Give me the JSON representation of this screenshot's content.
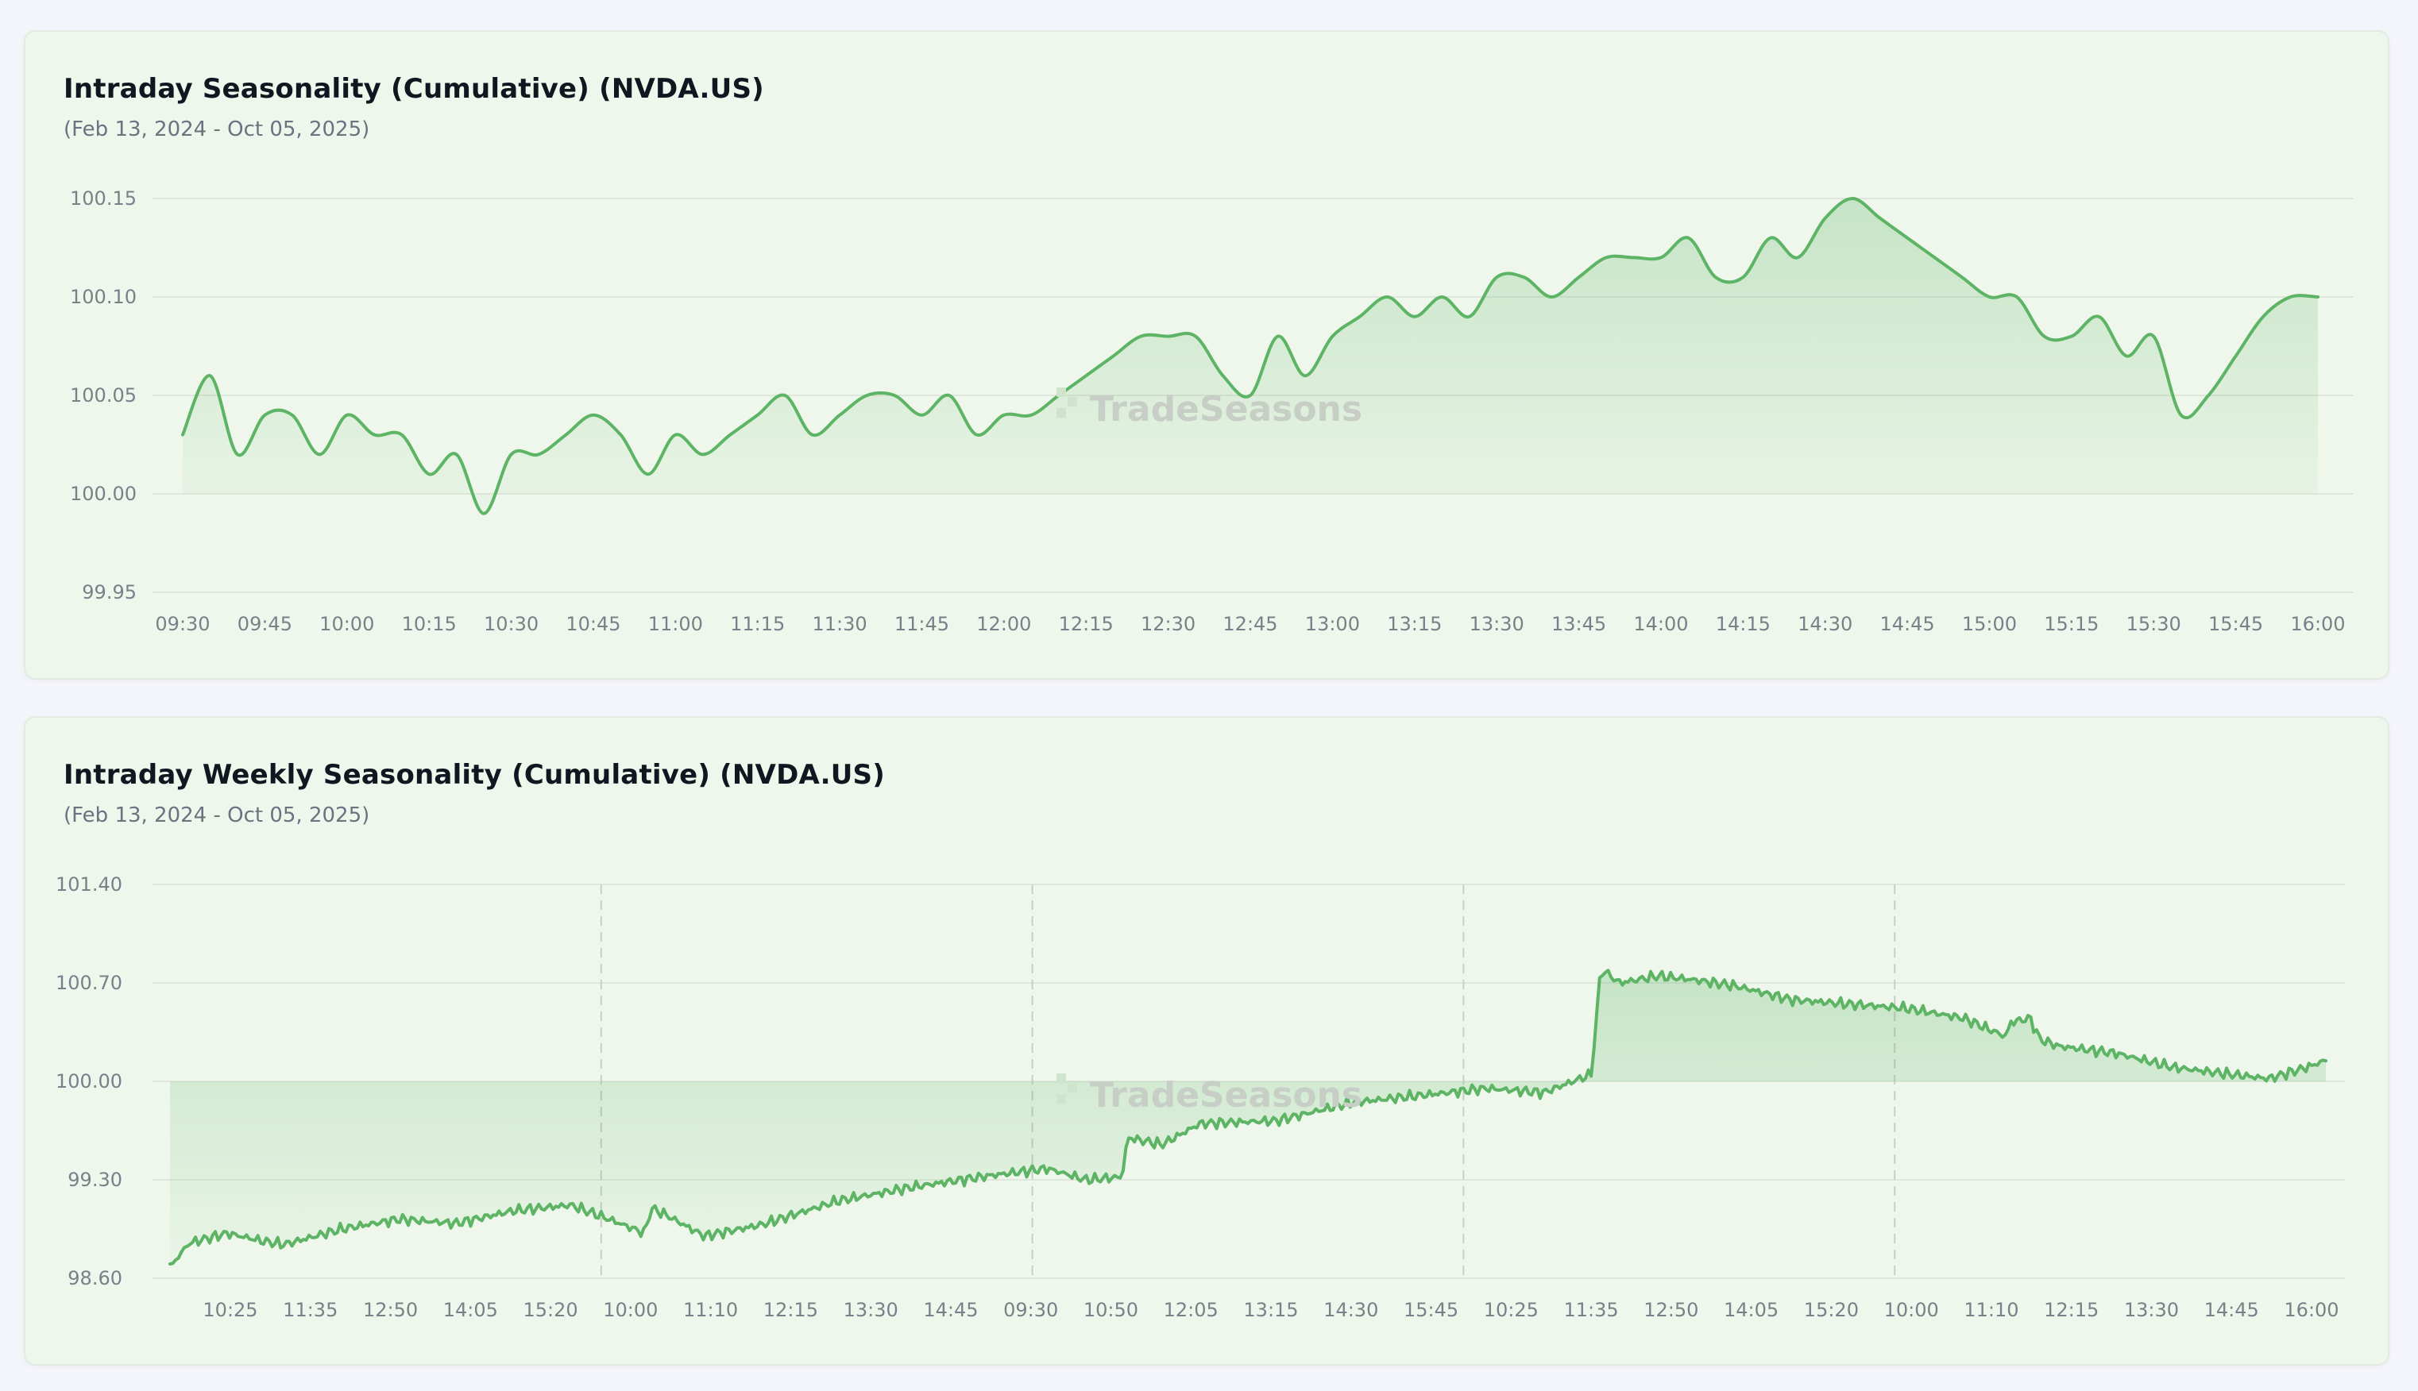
{
  "watermark": "TradeSeasons",
  "accent_color": "#5cb464",
  "chart_data": [
    {
      "type": "area",
      "title": "Intraday Seasonality (Cumulative) (NVDA.US)",
      "subtitle": "(Feb 13, 2024 - Oct 05, 2025)",
      "y_ticks": [
        "100.15",
        "100.10",
        "100.05",
        "100.00",
        "99.95"
      ],
      "ylim": [
        99.95,
        100.15
      ],
      "baseline": 100.0,
      "x_ticks": [
        "09:30",
        "09:45",
        "10:00",
        "10:15",
        "10:30",
        "10:45",
        "11:00",
        "11:15",
        "11:30",
        "11:45",
        "12:00",
        "12:15",
        "12:30",
        "12:45",
        "13:00",
        "13:15",
        "13:30",
        "13:45",
        "14:00",
        "14:15",
        "14:30",
        "14:45",
        "15:00",
        "15:15",
        "15:30",
        "15:45",
        "16:00"
      ],
      "grid": "horizontal",
      "series": [
        {
          "x": [
            "09:30",
            "09:35",
            "09:40",
            "09:45",
            "09:50",
            "09:55",
            "10:00",
            "10:05",
            "10:10",
            "10:15",
            "10:20",
            "10:25",
            "10:30",
            "10:35",
            "10:40",
            "10:45",
            "10:50",
            "10:55",
            "11:00",
            "11:05",
            "11:10",
            "11:15",
            "11:20",
            "11:25",
            "11:30",
            "11:35",
            "11:40",
            "11:45",
            "11:50",
            "11:55",
            "12:00",
            "12:05",
            "12:10",
            "12:15",
            "12:20",
            "12:25",
            "12:30",
            "12:35",
            "12:40",
            "12:45",
            "12:50",
            "12:55",
            "13:00",
            "13:05",
            "13:10",
            "13:15",
            "13:20",
            "13:25",
            "13:30",
            "13:35",
            "13:40",
            "13:45",
            "13:50",
            "13:55",
            "14:00",
            "14:05",
            "14:10",
            "14:15",
            "14:20",
            "14:25",
            "14:30",
            "14:35",
            "14:40",
            "14:45",
            "14:50",
            "14:55",
            "15:00",
            "15:05",
            "15:10",
            "15:15",
            "15:20",
            "15:25",
            "15:30",
            "15:35",
            "15:40",
            "15:45",
            "15:50",
            "15:55",
            "16:00"
          ],
          "values": [
            100.03,
            100.06,
            100.02,
            100.04,
            100.04,
            100.02,
            100.04,
            100.03,
            100.03,
            100.01,
            100.02,
            99.99,
            100.02,
            100.02,
            100.03,
            100.04,
            100.03,
            100.01,
            100.03,
            100.02,
            100.03,
            100.04,
            100.05,
            100.03,
            100.04,
            100.05,
            100.05,
            100.04,
            100.05,
            100.03,
            100.04,
            100.04,
            100.05,
            100.06,
            100.07,
            100.08,
            100.08,
            100.08,
            100.06,
            100.05,
            100.08,
            100.06,
            100.08,
            100.09,
            100.1,
            100.09,
            100.1,
            100.09,
            100.11,
            100.11,
            100.1,
            100.11,
            100.12,
            100.12,
            100.12,
            100.13,
            100.11,
            100.11,
            100.13,
            100.12,
            100.14,
            100.15,
            100.14,
            100.13,
            100.12,
            100.11,
            100.1,
            100.1,
            100.08,
            100.08,
            100.09,
            100.07,
            100.08,
            100.04,
            100.05,
            100.07,
            100.09,
            100.1,
            100.1
          ]
        }
      ]
    },
    {
      "type": "area",
      "title": "Intraday Weekly Seasonality (Cumulative) (NVDA.US)",
      "subtitle": "(Feb 13, 2024 - Oct 05, 2025)",
      "y_ticks": [
        "101.40",
        "100.70",
        "100.00",
        "99.30",
        "98.60"
      ],
      "ylim": [
        98.6,
        101.4
      ],
      "baseline": 100.0,
      "x_ticks": [
        "10:25",
        "11:35",
        "12:50",
        "14:05",
        "15:20",
        "10:00",
        "11:10",
        "12:15",
        "13:30",
        "14:45",
        "09:30",
        "10:50",
        "12:05",
        "13:15",
        "14:30",
        "15:45",
        "10:25",
        "11:35",
        "12:50",
        "14:05",
        "15:20",
        "10:00",
        "11:10",
        "12:15",
        "13:30",
        "14:45",
        "16:00"
      ],
      "day_boundaries": 4,
      "grid": "horizontal",
      "series": [
        {
          "anchors": [
            [
              0,
              98.68
            ],
            [
              0.01,
              98.85
            ],
            [
              0.03,
              98.92
            ],
            [
              0.05,
              98.86
            ],
            [
              0.06,
              98.84
            ],
            [
              0.09,
              98.95
            ],
            [
              0.12,
              99.02
            ],
            [
              0.15,
              98.99
            ],
            [
              0.18,
              99.08
            ],
            [
              0.21,
              99.12
            ],
            [
              0.23,
              99.02
            ],
            [
              0.249,
              98.92
            ],
            [
              0.252,
              99.1
            ],
            [
              0.26,
              99.05
            ],
            [
              0.28,
              98.9
            ],
            [
              0.31,
              98.98
            ],
            [
              0.35,
              99.15
            ],
            [
              0.39,
              99.25
            ],
            [
              0.43,
              99.33
            ],
            [
              0.46,
              99.38
            ],
            [
              0.48,
              99.3
            ],
            [
              0.499,
              99.32
            ],
            [
              0.502,
              99.6
            ],
            [
              0.52,
              99.55
            ],
            [
              0.54,
              99.7
            ],
            [
              0.58,
              99.72
            ],
            [
              0.62,
              99.85
            ],
            [
              0.67,
              99.92
            ],
            [
              0.69,
              99.95
            ],
            [
              0.72,
              99.92
            ],
            [
              0.745,
              100.05
            ],
            [
              0.75,
              100.8
            ],
            [
              0.76,
              100.7
            ],
            [
              0.78,
              100.75
            ],
            [
              0.8,
              100.72
            ],
            [
              0.82,
              100.68
            ],
            [
              0.85,
              100.58
            ],
            [
              0.88,
              100.55
            ],
            [
              0.91,
              100.52
            ],
            [
              0.94,
              100.45
            ],
            [
              0.962,
              100.32
            ],
            [
              0.965,
              100.42
            ],
            [
              0.975,
              100.45
            ],
            [
              0.98,
              100.3
            ],
            [
              0.99,
              100.25
            ],
            [
              1.02,
              100.2
            ],
            [
              1.05,
              100.1
            ],
            [
              1.08,
              100.05
            ],
            [
              1.1,
              100.02
            ],
            [
              1.12,
              100.1
            ],
            [
              1.13,
              100.15
            ]
          ]
        }
      ]
    }
  ]
}
